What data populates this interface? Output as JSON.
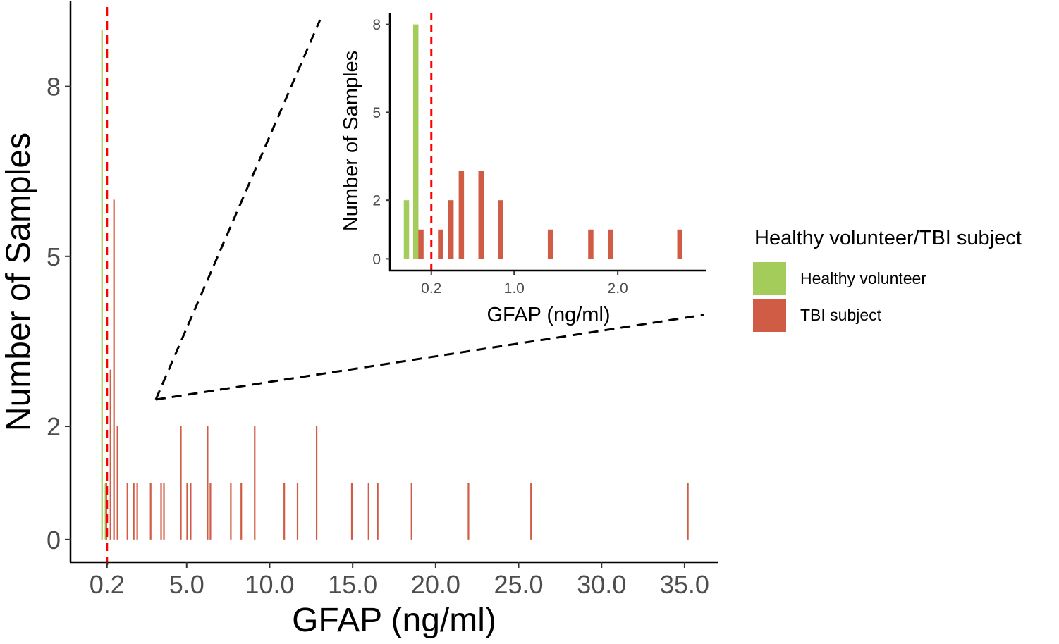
{
  "chart_data": [
    {
      "id": "main",
      "type": "bar",
      "xlabel": "GFAP (ng/ml)",
      "ylabel": "Number of Samples",
      "xlim": [
        -2.0,
        37.0
      ],
      "ylim": [
        -0.4,
        9.5
      ],
      "xticks": [
        0.2,
        5.0,
        10.0,
        15.0,
        20.0,
        25.0,
        30.0,
        35.0
      ],
      "xtick_labels": [
        "0.2",
        "5.0",
        "10.0",
        "15.0",
        "20.0",
        "25.0",
        "30.0",
        "35.0"
      ],
      "yticks": [
        0,
        2,
        5,
        8
      ],
      "ytick_labels": [
        "0",
        "2",
        "5",
        "8"
      ],
      "grid": false,
      "cutoff_line": {
        "x": 0.2,
        "style": "dashed",
        "color": "#ff0000"
      },
      "series": [
        {
          "name": "Healthy volunteer",
          "color": "#a3cc5b",
          "points": [
            {
              "x": -0.1,
              "y": 9
            },
            {
              "x": 0.11,
              "y": 1
            }
          ]
        },
        {
          "name": "TBI subject",
          "color": "#d05c45",
          "points": [
            {
              "x": 0.16,
              "y": 1
            },
            {
              "x": 0.41,
              "y": 3
            },
            {
              "x": 0.62,
              "y": 6
            },
            {
              "x": 0.83,
              "y": 2
            },
            {
              "x": 1.43,
              "y": 1
            },
            {
              "x": 1.81,
              "y": 1
            },
            {
              "x": 2.02,
              "y": 1
            },
            {
              "x": 2.83,
              "y": 1
            },
            {
              "x": 3.46,
              "y": 1
            },
            {
              "x": 3.63,
              "y": 1
            },
            {
              "x": 4.65,
              "y": 2
            },
            {
              "x": 5.03,
              "y": 1
            },
            {
              "x": 5.24,
              "y": 1
            },
            {
              "x": 6.26,
              "y": 2
            },
            {
              "x": 6.43,
              "y": 1
            },
            {
              "x": 7.66,
              "y": 1
            },
            {
              "x": 8.29,
              "y": 1
            },
            {
              "x": 9.1,
              "y": 2
            },
            {
              "x": 10.88,
              "y": 1
            },
            {
              "x": 11.68,
              "y": 1
            },
            {
              "x": 12.83,
              "y": 2
            },
            {
              "x": 14.95,
              "y": 1
            },
            {
              "x": 15.96,
              "y": 1
            },
            {
              "x": 16.51,
              "y": 1
            },
            {
              "x": 18.55,
              "y": 1
            },
            {
              "x": 21.98,
              "y": 1
            },
            {
              "x": 25.75,
              "y": 1
            },
            {
              "x": 35.2,
              "y": 1
            }
          ]
        }
      ]
    },
    {
      "id": "inset",
      "type": "bar",
      "xlabel": "GFAP (ng/ml)",
      "ylabel": "Number of Samples",
      "xlim": [
        -0.2,
        2.85
      ],
      "ylim": [
        -0.4,
        8.4
      ],
      "xticks": [
        0.2,
        1.0,
        2.0
      ],
      "xtick_labels": [
        "0.2",
        "1.0",
        "2.0"
      ],
      "yticks": [
        0,
        2,
        5,
        8
      ],
      "ytick_labels": [
        "0",
        "2",
        "5",
        "8"
      ],
      "grid": false,
      "cutoff_line": {
        "x": 0.2,
        "style": "dashed",
        "color": "#ff0000"
      },
      "series": [
        {
          "name": "Healthy volunteer",
          "color": "#a3cc5b",
          "points": [
            {
              "x": -0.04,
              "y": 2
            },
            {
              "x": 0.05,
              "y": 8
            }
          ]
        },
        {
          "name": "TBI subject",
          "color": "#d05c45",
          "points": [
            {
              "x": 0.1,
              "y": 1
            },
            {
              "x": 0.29,
              "y": 1
            },
            {
              "x": 0.39,
              "y": 2
            },
            {
              "x": 0.49,
              "y": 3
            },
            {
              "x": 0.68,
              "y": 3
            },
            {
              "x": 0.87,
              "y": 2
            },
            {
              "x": 1.35,
              "y": 1
            },
            {
              "x": 1.74,
              "y": 1
            },
            {
              "x": 1.93,
              "y": 1
            },
            {
              "x": 2.6,
              "y": 1
            }
          ]
        }
      ]
    }
  ],
  "legend": {
    "title": "Healthy volunteer/TBI subject",
    "placement": "right",
    "items": [
      {
        "label": "Healthy volunteer",
        "color": "#a3cc5b"
      },
      {
        "label": "TBI subject",
        "color": "#d05c45"
      }
    ]
  },
  "annotation": {
    "type": "zoom-callout",
    "style": "dashed",
    "color": "#000000"
  }
}
